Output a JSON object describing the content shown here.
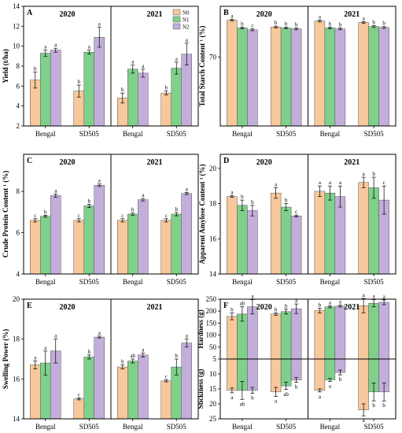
{
  "colors": {
    "N0": "#f7c89b",
    "N1": "#7fd08a",
    "N2": "#c3aedb"
  },
  "legend": [
    "N0",
    "N1",
    "N2"
  ],
  "chart_data": [
    {
      "id": "A",
      "type": "bar",
      "ylabel": "Yield (t/ha)",
      "ylim": [
        2,
        14
      ],
      "yticks": [
        2,
        4,
        6,
        8,
        10,
        12,
        14
      ],
      "years": [
        "2020",
        "2021"
      ],
      "categories": [
        "Bengal",
        "SD505"
      ],
      "series": [
        {
          "name": "N0",
          "values": [
            [
              6.6,
              5.5
            ],
            [
              4.8,
              5.3
            ]
          ],
          "err": [
            [
              0.8,
              0.6
            ],
            [
              0.5,
              0.2
            ]
          ],
          "sig": [
            [
              "b",
              "b"
            ],
            [
              "b",
              "b"
            ]
          ]
        },
        {
          "name": "N1",
          "values": [
            [
              9.3,
              9.4
            ],
            [
              7.7,
              7.8
            ]
          ],
          "err": [
            [
              0.3,
              0.2
            ],
            [
              0.4,
              0.6
            ]
          ],
          "sig": [
            [
              "a",
              "a"
            ],
            [
              "a",
              "a"
            ]
          ]
        },
        {
          "name": "N2",
          "values": [
            [
              9.6,
              10.9
            ],
            [
              7.3,
              9.2
            ]
          ],
          "err": [
            [
              0.2,
              1.0
            ],
            [
              0.4,
              1.1
            ]
          ],
          "sig": [
            [
              "a",
              "a"
            ],
            [
              "a",
              "a"
            ]
          ]
        }
      ]
    },
    {
      "id": "B",
      "type": "bar",
      "ylabel": "Total Starch Content ¹ (%)",
      "ylim": [
        55,
        81
      ],
      "yticks": [
        70
      ],
      "years": [
        "2020",
        "2021"
      ],
      "categories": [
        "Bengal",
        "SD505"
      ],
      "series": [
        {
          "name": "N0",
          "values": [
            [
              78.0,
              76.5
            ],
            [
              77.8,
              77.5
            ]
          ],
          "err": [
            [
              0.2,
              0.2
            ],
            [
              0.2,
              0.2
            ]
          ],
          "sig": [
            [
              "a",
              "b"
            ],
            [
              "a",
              "a"
            ]
          ]
        },
        {
          "name": "N1",
          "values": [
            [
              76.3,
              76.3
            ],
            [
              76.3,
              76.6
            ]
          ],
          "err": [
            [
              0.2,
              0.2
            ],
            [
              0.2,
              0.2
            ]
          ],
          "sig": [
            [
              "b",
              "b"
            ],
            [
              "b",
              "b"
            ]
          ]
        },
        {
          "name": "N2",
          "values": [
            [
              75.9,
              76.1
            ],
            [
              76.1,
              76.4
            ]
          ],
          "err": [
            [
              0.2,
              0.2
            ],
            [
              0.2,
              0.2
            ]
          ],
          "sig": [
            [
              "c",
              "b"
            ],
            [
              "b",
              "b"
            ]
          ]
        }
      ]
    },
    {
      "id": "C",
      "type": "bar",
      "ylabel": "Crude Protein Content ¹ (%)",
      "ylim": [
        4,
        9.8
      ],
      "yticks": [
        4,
        6,
        8
      ],
      "years": [
        "2020",
        "2021"
      ],
      "categories": [
        "Bengal",
        "SD505"
      ],
      "series": [
        {
          "name": "N0",
          "values": [
            [
              6.6,
              6.6
            ],
            [
              6.6,
              6.6
            ]
          ],
          "err": [
            [
              0.08,
              0.08
            ],
            [
              0.08,
              0.08
            ]
          ],
          "sig": [
            [
              "c",
              "c"
            ],
            [
              "c",
              "c"
            ]
          ]
        },
        {
          "name": "N1",
          "values": [
            [
              6.8,
              7.3
            ],
            [
              6.9,
              6.9
            ]
          ],
          "err": [
            [
              0.05,
              0.08
            ],
            [
              0.05,
              0.08
            ]
          ],
          "sig": [
            [
              "b",
              "b"
            ],
            [
              "b",
              "b"
            ]
          ]
        },
        {
          "name": "N2",
          "values": [
            [
              7.8,
              8.3
            ],
            [
              7.6,
              7.9
            ]
          ],
          "err": [
            [
              0.08,
              0.06
            ],
            [
              0.06,
              0.05
            ]
          ],
          "sig": [
            [
              "a",
              "a"
            ],
            [
              "a",
              "a"
            ]
          ]
        }
      ]
    },
    {
      "id": "D",
      "type": "bar",
      "ylabel": "Apparent Amylose Content ² (%)",
      "ylim": [
        14,
        20.8
      ],
      "yticks": [
        14,
        16,
        18,
        20
      ],
      "years": [
        "2020",
        "2021"
      ],
      "categories": [
        "Bengal",
        "SD505"
      ],
      "series": [
        {
          "name": "N0",
          "values": [
            [
              18.4,
              18.6
            ],
            [
              18.7,
              19.2
            ]
          ],
          "err": [
            [
              0.05,
              0.3
            ],
            [
              0.3,
              0.3
            ]
          ],
          "sig": [
            [
              "a",
              "a"
            ],
            [
              "a",
              "a"
            ]
          ]
        },
        {
          "name": "N1",
          "values": [
            [
              17.9,
              17.8
            ],
            [
              18.6,
              18.9
            ]
          ],
          "err": [
            [
              0.3,
              0.2
            ],
            [
              0.4,
              0.6
            ]
          ],
          "sig": [
            [
              "b",
              "b"
            ],
            [
              "a",
              "b"
            ]
          ]
        },
        {
          "name": "N2",
          "values": [
            [
              17.6,
              17.3
            ],
            [
              18.4,
              18.2
            ]
          ],
          "err": [
            [
              0.3,
              0.05
            ],
            [
              0.6,
              0.8
            ]
          ],
          "sig": [
            [
              "b",
              "c"
            ],
            [
              "a",
              "c"
            ]
          ]
        }
      ]
    },
    {
      "id": "E",
      "type": "bar",
      "ylabel": "Swelling Power (%)",
      "ylim": [
        14,
        20
      ],
      "yticks": [
        14,
        16,
        18,
        20
      ],
      "years": [
        "2020",
        "2021"
      ],
      "categories": [
        "Bengal",
        "SD505"
      ],
      "series": [
        {
          "name": "N0",
          "values": [
            [
              16.7,
              15.0
            ],
            [
              16.6,
              15.9
            ]
          ],
          "err": [
            [
              0.2,
              0.05
            ],
            [
              0.1,
              0.05
            ]
          ],
          "sig": [
            [
              "a",
              "c"
            ],
            [
              "b",
              "c"
            ]
          ]
        },
        {
          "name": "N1",
          "values": [
            [
              16.8,
              17.1
            ],
            [
              16.9,
              16.6
            ]
          ],
          "err": [
            [
              0.6,
              0.1
            ],
            [
              0.1,
              0.4
            ]
          ],
          "sig": [
            [
              "a",
              "b"
            ],
            [
              "ab",
              "b"
            ]
          ]
        },
        {
          "name": "N2",
          "values": [
            [
              17.4,
              18.1
            ],
            [
              17.2,
              17.8
            ]
          ],
          "err": [
            [
              0.6,
              0.05
            ],
            [
              0.1,
              0.2
            ]
          ],
          "sig": [
            [
              "a",
              "a"
            ],
            [
              "a",
              "a"
            ]
          ]
        }
      ]
    },
    {
      "id": "F",
      "type": "bar",
      "ylabel_top": "Hardness (g)",
      "ylabel_bottom": "Stickiness (g)",
      "top_ylim": [
        0,
        250
      ],
      "top_yticks": [
        50,
        100,
        150,
        200,
        250
      ],
      "bottom_ylim": [
        5,
        25
      ],
      "bottom_yticks": [
        5,
        10,
        15,
        20,
        25
      ],
      "years": [
        "2020",
        "2021"
      ],
      "categories": [
        "Bengal",
        "SD505"
      ],
      "series": [
        {
          "name": "N0",
          "hardness": [
            [
              178,
              188
            ],
            [
              202,
              223
            ]
          ],
          "hardness_err": [
            [
              14,
              5
            ],
            [
              10,
              30
            ]
          ],
          "hardness_sig": [
            [
              "b",
              "b"
            ],
            [
              "b",
              "a"
            ]
          ],
          "stickiness": [
            [
              15.5,
              16.0
            ],
            [
              15.5,
              22.0
            ]
          ],
          "stickiness_err": [
            [
              0.8,
              1.5
            ],
            [
              0.5,
              2.0
            ]
          ],
          "stickiness_sig": [
            [
              "a",
              "a"
            ],
            [
              "a",
              "a"
            ]
          ]
        },
        {
          "name": "N1",
          "hardness": [
            [
              188,
              198
            ],
            [
              218,
              233
            ]
          ],
          "hardness_err": [
            [
              30,
              10
            ],
            [
              4,
              15
            ]
          ],
          "hardness_sig": [
            [
              "ab",
              "b"
            ],
            [
              "a",
              "a"
            ]
          ],
          "stickiness": [
            [
              15.5,
              14.0
            ],
            [
              12.0,
              16.0
            ]
          ],
          "stickiness_err": [
            [
              3.0,
              1.2
            ],
            [
              0.5,
              3.0
            ]
          ],
          "stickiness_sig": [
            [
              "ab",
              "ab"
            ],
            [
              "a",
              "b"
            ]
          ]
        },
        {
          "name": "N2",
          "hardness": [
            [
              218,
              210
            ],
            [
              221,
              237
            ]
          ],
          "hardness_err": [
            [
              30,
              20
            ],
            [
              4,
              10
            ]
          ],
          "hardness_sig": [
            [
              "a",
              "a"
            ],
            [
              "a",
              "a"
            ]
          ],
          "stickiness": [
            [
              15.5,
              12.0
            ],
            [
              9.5,
              16.0
            ]
          ],
          "stickiness_err": [
            [
              1.0,
              0.8
            ],
            [
              0.8,
              3.0
            ]
          ],
          "stickiness_sig": [
            [
              "b",
              "b"
            ],
            [
              "b",
              "b"
            ]
          ]
        }
      ]
    }
  ]
}
